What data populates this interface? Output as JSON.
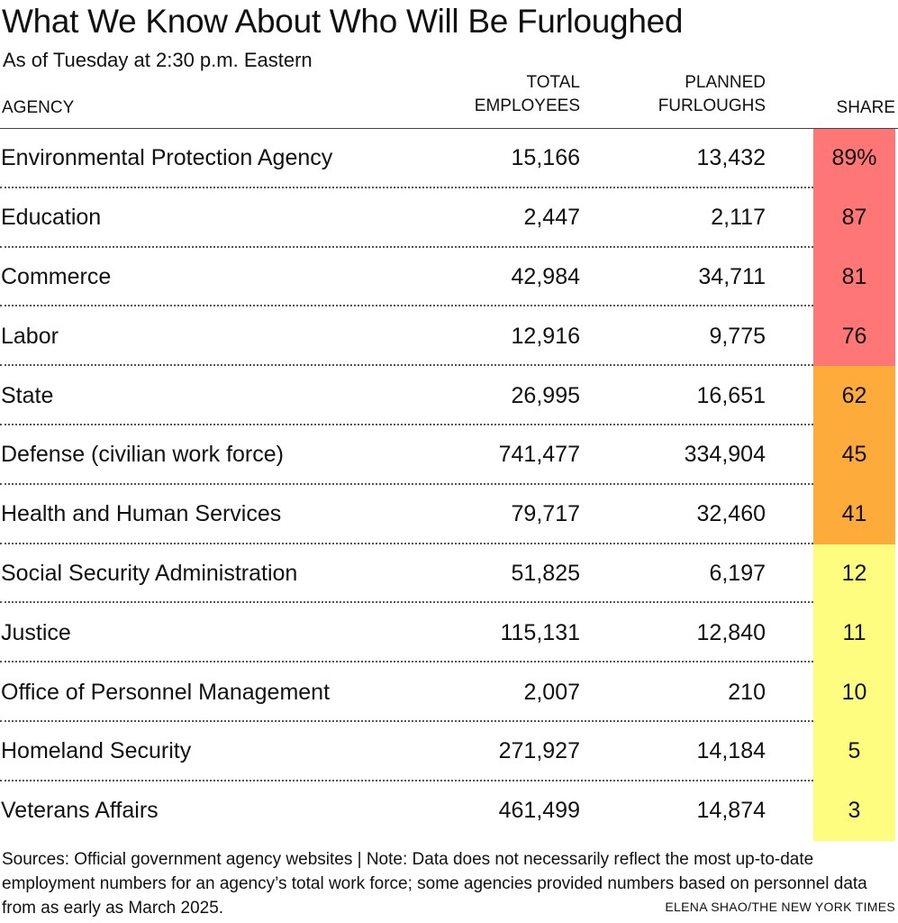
{
  "title": "What We Know About Who Will Be Furloughed",
  "subtitle": "As of Tuesday at 2:30 p.m. Eastern",
  "columns": {
    "agency": "AGENCY",
    "total_line1": "TOTAL",
    "total_line2": "EMPLOYEES",
    "planned_line1": "PLANNED",
    "planned_line2": "FURLOUGHS",
    "share": "SHARE"
  },
  "colors": {
    "red": "#ff7676",
    "orange": "#fdab3a",
    "yellow": "#fffd80"
  },
  "chart_data": {
    "type": "table",
    "title": "What We Know About Who Will Be Furloughed",
    "columns": [
      "AGENCY",
      "TOTAL EMPLOYEES",
      "PLANNED FURLOUGHS",
      "SHARE"
    ],
    "rows": [
      {
        "agency": "Environmental Protection Agency",
        "total": "15,166",
        "planned": "13,432",
        "share": "89%",
        "share_value": 89,
        "color": "#ff7676"
      },
      {
        "agency": "Education",
        "total": "2,447",
        "planned": "2,117",
        "share": "87",
        "share_value": 87,
        "color": "#ff7676"
      },
      {
        "agency": "Commerce",
        "total": "42,984",
        "planned": "34,711",
        "share": "81",
        "share_value": 81,
        "color": "#ff7676"
      },
      {
        "agency": "Labor",
        "total": "12,916",
        "planned": "9,775",
        "share": "76",
        "share_value": 76,
        "color": "#ff7676"
      },
      {
        "agency": "State",
        "total": "26,995",
        "planned": "16,651",
        "share": "62",
        "share_value": 62,
        "color": "#fdab3a"
      },
      {
        "agency": "Defense (civilian work force)",
        "total": "741,477",
        "planned": "334,904",
        "share": "45",
        "share_value": 45,
        "color": "#fdab3a"
      },
      {
        "agency": "Health and Human Services",
        "total": "79,717",
        "planned": "32,460",
        "share": "41",
        "share_value": 41,
        "color": "#fdab3a"
      },
      {
        "agency": "Social Security Administration",
        "total": "51,825",
        "planned": "6,197",
        "share": "12",
        "share_value": 12,
        "color": "#fffd80"
      },
      {
        "agency": "Justice",
        "total": "115,131",
        "planned": "12,840",
        "share": "11",
        "share_value": 11,
        "color": "#fffd80"
      },
      {
        "agency": "Office of Personnel Management",
        "total": "2,007",
        "planned": "210",
        "share": "10",
        "share_value": 10,
        "color": "#fffd80"
      },
      {
        "agency": "Homeland Security",
        "total": "271,927",
        "planned": "14,184",
        "share": "5",
        "share_value": 5,
        "color": "#fffd80"
      },
      {
        "agency": "Veterans Affairs",
        "total": "461,499",
        "planned": "14,874",
        "share": "3",
        "share_value": 3,
        "color": "#fffd80"
      }
    ]
  },
  "footer": {
    "notes": "Sources: Official government agency websites  |  Note: Data does not necessarily reflect the most up-to-date employment numbers for an agency’s total work force; some agencies provided numbers based on personnel data from as early as March 2025.",
    "credit": "ELENA SHAO/THE NEW YORK TIMES"
  }
}
